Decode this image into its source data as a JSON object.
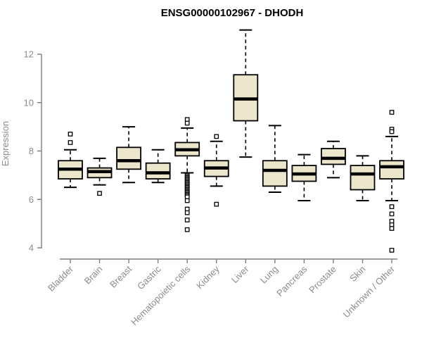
{
  "colors": {
    "box_fill": "#ECE6CC",
    "box_stroke": "#000000",
    "median": "#000000",
    "whisker": "#000000",
    "outlier_stroke": "#000000",
    "outlier_fill": "#FFFFFF",
    "axis": "#7E7E7E",
    "muted_text": "#8C8C8C",
    "title_text": "#000000",
    "background": "#FFFFFF"
  },
  "chart_data": {
    "type": "box",
    "title": "ENSG00000102967 - DHODH",
    "ylabel": "Expression",
    "xlabel": "",
    "yticks": [
      4,
      6,
      8,
      10,
      12
    ],
    "ylim": [
      3.7,
      13.3
    ],
    "grid": false,
    "legend": "none",
    "categories": [
      "Bladder",
      "Brain",
      "Breast",
      "Gastric",
      "Hematopoietic cells",
      "Kidney",
      "Liver",
      "Lung",
      "Pancreas",
      "Prostate",
      "Skin",
      "Unknown / Other"
    ],
    "boxes": [
      {
        "category": "Bladder",
        "whisker_low": 6.5,
        "q1": 6.85,
        "median": 7.25,
        "q3": 7.6,
        "whisker_high": 8.05,
        "outliers": [
          8.35,
          8.7
        ]
      },
      {
        "category": "Brain",
        "whisker_low": 6.6,
        "q1": 6.9,
        "median": 7.15,
        "q3": 7.3,
        "whisker_high": 7.7,
        "outliers": [
          6.25
        ]
      },
      {
        "category": "Breast",
        "whisker_low": 6.7,
        "q1": 7.25,
        "median": 7.6,
        "q3": 8.15,
        "whisker_high": 9.0,
        "outliers": []
      },
      {
        "category": "Gastric",
        "whisker_low": 6.7,
        "q1": 6.85,
        "median": 7.1,
        "q3": 7.5,
        "whisker_high": 8.05,
        "outliers": []
      },
      {
        "category": "Hematopoietic cells",
        "whisker_low": 7.1,
        "q1": 7.8,
        "median": 8.05,
        "q3": 8.35,
        "whisker_high": 8.95,
        "outliers": [
          9.3,
          9.15,
          7.0,
          6.95,
          6.9,
          6.85,
          6.8,
          6.75,
          6.7,
          6.65,
          6.6,
          6.55,
          6.5,
          6.45,
          6.4,
          6.35,
          6.3,
          6.25,
          6.2,
          6.15,
          6.1,
          5.95,
          5.6,
          5.45,
          5.15,
          4.75
        ]
      },
      {
        "category": "Kidney",
        "whisker_low": 6.55,
        "q1": 6.95,
        "median": 7.3,
        "q3": 7.6,
        "whisker_high": 8.4,
        "outliers": [
          8.6,
          5.8
        ]
      },
      {
        "category": "Liver",
        "whisker_low": 7.75,
        "q1": 9.25,
        "median": 10.15,
        "q3": 11.15,
        "whisker_high": 13.0,
        "outliers": []
      },
      {
        "category": "Lung",
        "whisker_low": 6.3,
        "q1": 6.55,
        "median": 7.2,
        "q3": 7.6,
        "whisker_high": 9.05,
        "outliers": []
      },
      {
        "category": "Pancreas",
        "whisker_low": 5.95,
        "q1": 6.75,
        "median": 7.05,
        "q3": 7.4,
        "whisker_high": 7.85,
        "outliers": []
      },
      {
        "category": "Prostate",
        "whisker_low": 6.9,
        "q1": 7.45,
        "median": 7.7,
        "q3": 8.1,
        "whisker_high": 8.4,
        "outliers": []
      },
      {
        "category": "Skin",
        "whisker_low": 5.95,
        "q1": 6.4,
        "median": 7.05,
        "q3": 7.4,
        "whisker_high": 7.8,
        "outliers": []
      },
      {
        "category": "Unknown / Other",
        "whisker_low": 5.95,
        "q1": 6.85,
        "median": 7.35,
        "q3": 7.6,
        "whisker_high": 8.6,
        "outliers": [
          9.6,
          8.9,
          8.8,
          5.7,
          5.4,
          5.1,
          4.95,
          4.8,
          3.9
        ]
      }
    ]
  }
}
